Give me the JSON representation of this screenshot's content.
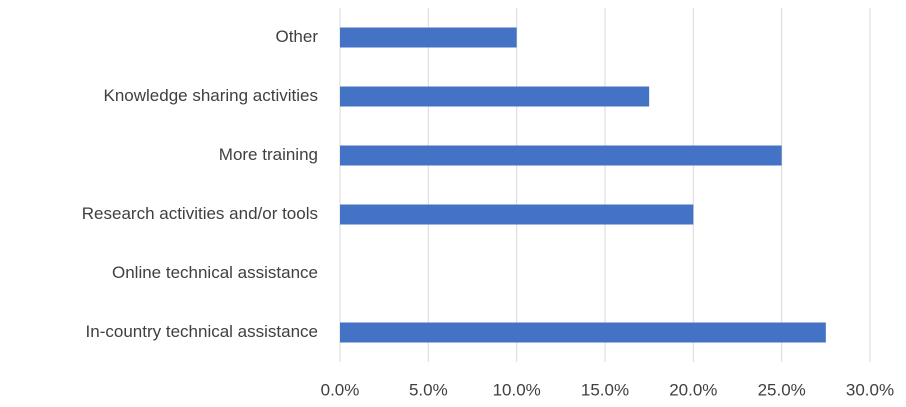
{
  "chart_data": {
    "type": "bar",
    "orientation": "horizontal",
    "categories": [
      "Other",
      "Knowledge sharing activities",
      "More training",
      "Research activities and/or tools",
      "Online technical assistance",
      "In-country technical assistance"
    ],
    "values": [
      10,
      17.5,
      25,
      20,
      0,
      27.5
    ],
    "color": "#4472c4",
    "xlim": [
      0,
      30
    ],
    "xticks": [
      {
        "value": 0,
        "label": "0.0%"
      },
      {
        "value": 5,
        "label": "5.0%"
      },
      {
        "value": 10,
        "label": "10.0%"
      },
      {
        "value": 15,
        "label": "15.0%"
      },
      {
        "value": 20,
        "label": "20.0%"
      },
      {
        "value": 25,
        "label": "25.0%"
      },
      {
        "value": 30,
        "label": "30.0%"
      }
    ],
    "grid": true
  }
}
